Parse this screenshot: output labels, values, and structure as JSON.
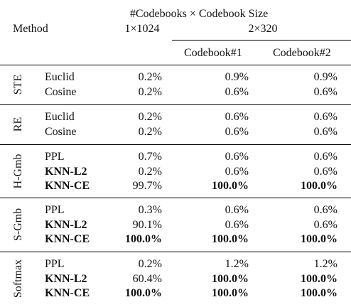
{
  "header": {
    "method_label": "Method",
    "title": "#Codebooks × Codebook Size",
    "config_a": "1×1024",
    "config_b": "2×320",
    "codebook1": "Codebook#1",
    "codebook2": "Codebook#2"
  },
  "groups": [
    {
      "name": "STE",
      "rows": [
        {
          "method": "Euclid",
          "a": "0.2%",
          "b1": "0.9%",
          "b2": "0.9%",
          "bold": [
            false,
            false,
            false,
            false
          ]
        },
        {
          "method": "Cosine",
          "a": "0.2%",
          "b1": "0.6%",
          "b2": "0.6%",
          "bold": [
            false,
            false,
            false,
            false
          ]
        }
      ]
    },
    {
      "name": "RE",
      "rows": [
        {
          "method": "Euclid",
          "a": "0.2%",
          "b1": "0.6%",
          "b2": "0.6%",
          "bold": [
            false,
            false,
            false,
            false
          ]
        },
        {
          "method": "Cosine",
          "a": "0.2%",
          "b1": "0.6%",
          "b2": "0.6%",
          "bold": [
            false,
            false,
            false,
            false
          ]
        }
      ]
    },
    {
      "name": "H-Gmb",
      "rows": [
        {
          "method": "PPL",
          "a": "0.7%",
          "b1": "0.6%",
          "b2": "0.6%",
          "bold": [
            false,
            false,
            false,
            false
          ]
        },
        {
          "method": "KNN-L2",
          "a": "0.2%",
          "b1": "0.6%",
          "b2": "0.6%",
          "bold": [
            true,
            false,
            false,
            false
          ]
        },
        {
          "method": "KNN-CE",
          "a": "99.7%",
          "b1": "100.0%",
          "b2": "100.0%",
          "bold": [
            true,
            false,
            true,
            true
          ]
        }
      ]
    },
    {
      "name": "S-Gmb",
      "rows": [
        {
          "method": "PPL",
          "a": "0.3%",
          "b1": "0.6%",
          "b2": "0.6%",
          "bold": [
            false,
            false,
            false,
            false
          ]
        },
        {
          "method": "KNN-L2",
          "a": "90.1%",
          "b1": "0.6%",
          "b2": "0.6%",
          "bold": [
            true,
            false,
            false,
            false
          ]
        },
        {
          "method": "KNN-CE",
          "a": "100.0%",
          "b1": "100.0%",
          "b2": "100.0%",
          "bold": [
            true,
            true,
            true,
            true
          ]
        }
      ]
    },
    {
      "name": "Softmax",
      "rows": [
        {
          "method": "PPL",
          "a": "0.2%",
          "b1": "1.2%",
          "b2": "1.2%",
          "bold": [
            false,
            false,
            false,
            false
          ]
        },
        {
          "method": "KNN-L2",
          "a": "60.4%",
          "b1": "100.0%",
          "b2": "100.0%",
          "bold": [
            true,
            false,
            true,
            true
          ]
        },
        {
          "method": "KNN-CE",
          "a": "100.0%",
          "b1": "100.0%",
          "b2": "100.0%",
          "bold": [
            true,
            true,
            true,
            true
          ]
        }
      ]
    }
  ]
}
